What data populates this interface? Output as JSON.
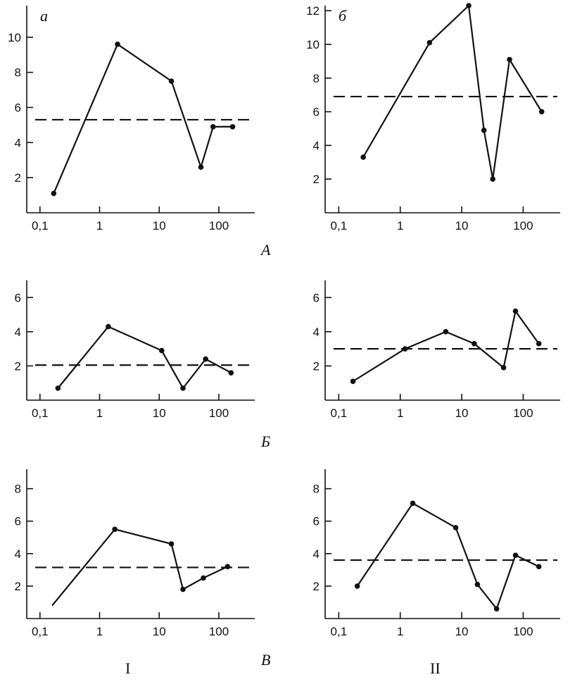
{
  "figure": {
    "row_labels": [
      "А",
      "Б",
      "В"
    ],
    "column_labels": [
      "I",
      "II"
    ]
  },
  "chart_data": [
    {
      "type": "line",
      "panel_label": "а",
      "x_scale": "log",
      "xticks": [
        0.1,
        1,
        10,
        100
      ],
      "xtick_labels": [
        "0,1",
        "1",
        "10",
        "100"
      ],
      "xlim": [
        0.06,
        400
      ],
      "yticks": [
        2,
        4,
        6,
        8,
        10
      ],
      "ytick_labels": [
        "2",
        "4",
        "6",
        "8",
        "10"
      ],
      "ylim": [
        0,
        11.8
      ],
      "grid": false,
      "series": [
        {
          "x": [
            0.17,
            2,
            16,
            50,
            80,
            170
          ],
          "y": [
            1.1,
            9.6,
            7.5,
            2.6,
            4.9,
            4.9
          ],
          "markers": [
            true,
            true,
            true,
            true,
            true,
            true
          ]
        }
      ],
      "mean_line": 5.3
    },
    {
      "type": "line",
      "panel_label": "б",
      "x_scale": "log",
      "xticks": [
        0.1,
        1,
        10,
        100
      ],
      "xtick_labels": [
        "0,1",
        "1",
        "10",
        "100"
      ],
      "xlim": [
        0.06,
        400
      ],
      "yticks": [
        2,
        4,
        6,
        8,
        10,
        12
      ],
      "ytick_labels": [
        "2",
        "4",
        "6",
        "8",
        "10",
        "12"
      ],
      "ylim": [
        0,
        12.3
      ],
      "grid": false,
      "series": [
        {
          "x": [
            0.25,
            3,
            13,
            23,
            32,
            60,
            200
          ],
          "y": [
            3.3,
            10.1,
            12.3,
            4.9,
            2.0,
            9.1,
            6.0
          ],
          "markers": [
            true,
            true,
            true,
            true,
            true,
            true,
            true
          ]
        }
      ],
      "mean_line": 6.9
    },
    {
      "type": "line",
      "panel_label": "",
      "x_scale": "log",
      "xticks": [
        0.1,
        1,
        10,
        100
      ],
      "xtick_labels": [
        "0,1",
        "1",
        "10",
        "100"
      ],
      "xlim": [
        0.06,
        400
      ],
      "yticks": [
        2,
        4,
        6
      ],
      "ytick_labels": [
        "2",
        "4",
        "6"
      ],
      "ylim": [
        0,
        7
      ],
      "grid": false,
      "series": [
        {
          "x": [
            0.2,
            1.4,
            11,
            25,
            60,
            160
          ],
          "y": [
            0.7,
            4.3,
            2.9,
            0.7,
            2.4,
            1.6
          ],
          "markers": [
            true,
            true,
            true,
            true,
            true,
            true
          ]
        }
      ],
      "mean_line": 2.05
    },
    {
      "type": "line",
      "panel_label": "",
      "x_scale": "log",
      "xticks": [
        0.1,
        1,
        10,
        100
      ],
      "xtick_labels": [
        "0,1",
        "1",
        "10",
        "100"
      ],
      "xlim": [
        0.06,
        400
      ],
      "yticks": [
        2,
        4,
        6
      ],
      "ytick_labels": [
        "2",
        "4",
        "6"
      ],
      "ylim": [
        0,
        7
      ],
      "grid": false,
      "series": [
        {
          "x": [
            0.17,
            1.2,
            5.5,
            16,
            48,
            75,
            180
          ],
          "y": [
            1.1,
            3.0,
            4.0,
            3.3,
            1.9,
            5.2,
            3.3
          ],
          "markers": [
            true,
            true,
            true,
            true,
            true,
            true,
            true
          ]
        }
      ],
      "mean_line": 3.0
    },
    {
      "type": "line",
      "panel_label": "",
      "x_scale": "log",
      "xticks": [
        0.1,
        1,
        10,
        100
      ],
      "xtick_labels": [
        "0,1",
        "1",
        "10",
        "100"
      ],
      "xlim": [
        0.06,
        400
      ],
      "yticks": [
        2,
        4,
        6,
        8
      ],
      "ytick_labels": [
        "2",
        "4",
        "6",
        "8"
      ],
      "ylim": [
        0,
        9.2
      ],
      "grid": false,
      "series": [
        {
          "x": [
            0.16,
            1.8,
            16,
            25,
            55,
            140
          ],
          "y": [
            0.8,
            5.5,
            4.6,
            1.8,
            2.5,
            3.2
          ],
          "markers": [
            false,
            true,
            true,
            true,
            true,
            true
          ]
        }
      ],
      "mean_line": 3.15
    },
    {
      "type": "line",
      "panel_label": "",
      "x_scale": "log",
      "xticks": [
        0.1,
        1,
        10,
        100
      ],
      "xtick_labels": [
        "0,1",
        "1",
        "10",
        "100"
      ],
      "xlim": [
        0.06,
        400
      ],
      "yticks": [
        2,
        4,
        6,
        8
      ],
      "ytick_labels": [
        "2",
        "4",
        "6",
        "8"
      ],
      "ylim": [
        0,
        9.2
      ],
      "grid": false,
      "series": [
        {
          "x": [
            0.2,
            1.6,
            8,
            18,
            37,
            75,
            180
          ],
          "y": [
            2.0,
            7.1,
            5.6,
            2.1,
            0.6,
            3.9,
            3.2
          ],
          "markers": [
            true,
            true,
            true,
            true,
            true,
            true,
            true
          ]
        }
      ],
      "mean_line": 3.6
    }
  ]
}
